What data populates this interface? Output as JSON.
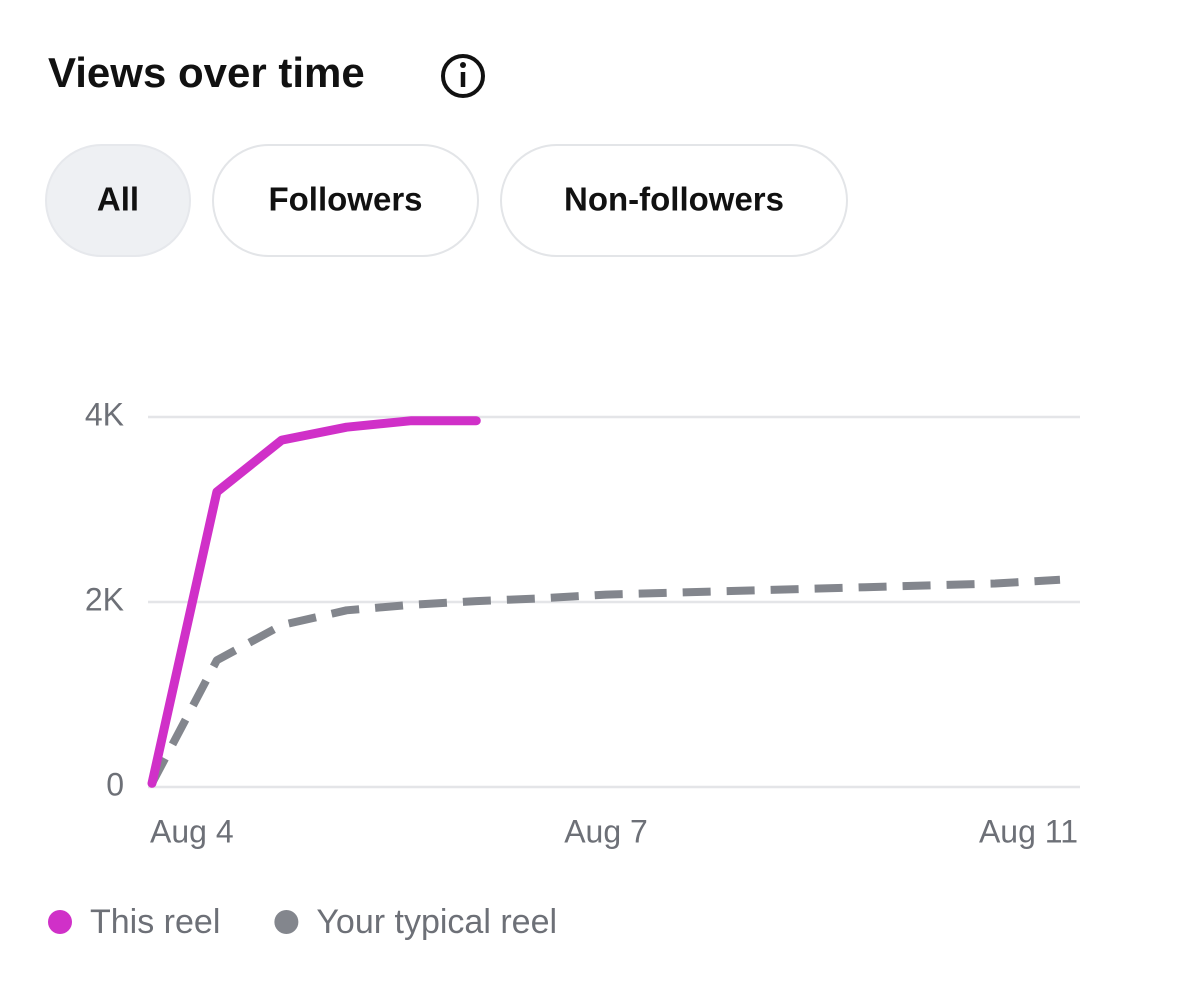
{
  "header": {
    "title": "Views over time"
  },
  "tabs": [
    "All",
    "Followers",
    "Non-followers"
  ],
  "chart_data": {
    "type": "line",
    "categories": [
      "Aug 4",
      null,
      null,
      null,
      null,
      null,
      null,
      "Aug 7",
      null,
      null,
      null,
      null,
      null,
      null,
      "Aug 11"
    ],
    "series": [
      {
        "name": "This reel",
        "color": "#d030c8",
        "values": [
          40,
          3190,
          3750,
          3890,
          3960,
          3960,
          null,
          null,
          null,
          null,
          null,
          null,
          null,
          null,
          null
        ]
      },
      {
        "name": "Your typical reel",
        "color": "#83868d",
        "values": [
          40,
          1370,
          1750,
          1910,
          1970,
          2010,
          2040,
          2080,
          2100,
          2120,
          2140,
          2160,
          2180,
          2200,
          2240
        ]
      }
    ],
    "ylim": [
      0,
      4000
    ],
    "yticks": [
      0,
      {
        "value": 2000,
        "label": "2K"
      },
      {
        "value": 4000,
        "label": "4K"
      }
    ],
    "grid": true,
    "legend": "bottom"
  }
}
